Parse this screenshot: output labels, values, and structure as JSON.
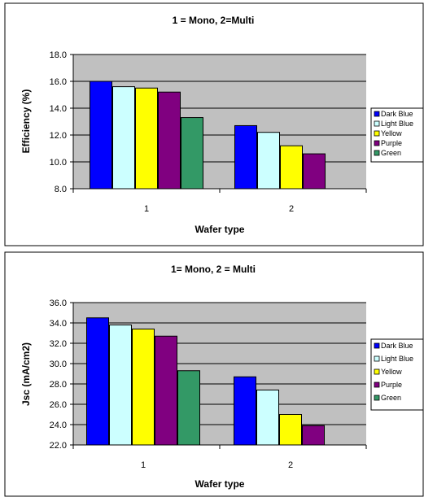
{
  "chart_data": [
    {
      "type": "bar",
      "title": "1 = Mono, 2=Multi",
      "xlabel": "Wafer type",
      "ylabel": "Efficiency (%)",
      "ylim": [
        8.0,
        18.0
      ],
      "ytick_step": 2.0,
      "yticks": [
        "8.0",
        "10.0",
        "12.0",
        "14.0",
        "16.0",
        "18.0"
      ],
      "categories": [
        "1",
        "2"
      ],
      "grid": true,
      "legend_position": "right",
      "series": [
        {
          "name": "Dark Blue",
          "color": "#0000ff",
          "values": [
            16.0,
            12.7
          ]
        },
        {
          "name": "Light Blue",
          "color": "#ccffff",
          "values": [
            15.6,
            12.2
          ]
        },
        {
          "name": "Yellow",
          "color": "#ffff00",
          "values": [
            15.5,
            11.2
          ]
        },
        {
          "name": "Purple",
          "color": "#800080",
          "values": [
            15.2,
            10.6
          ]
        },
        {
          "name": "Green",
          "color": "#339966",
          "values": [
            13.3,
            null
          ]
        }
      ],
      "plot_bg": "#c0c0c0"
    },
    {
      "type": "bar",
      "title": "1= Mono, 2 = Multi",
      "xlabel": "Wafer type",
      "ylabel": "Jsc (mA/cm2)",
      "ylim": [
        22.0,
        36.0
      ],
      "ytick_step": 2.0,
      "yticks": [
        "22.0",
        "24.0",
        "26.0",
        "28.0",
        "30.0",
        "32.0",
        "34.0",
        "36.0"
      ],
      "categories": [
        "1",
        "2"
      ],
      "grid": true,
      "legend_position": "right",
      "series": [
        {
          "name": "Dark Blue",
          "color": "#0000ff",
          "values": [
            34.5,
            28.7
          ]
        },
        {
          "name": "Light Blue",
          "color": "#ccffff",
          "values": [
            33.8,
            27.4
          ]
        },
        {
          "name": "Yellow",
          "color": "#ffff00",
          "values": [
            33.4,
            25.0
          ]
        },
        {
          "name": "Purple",
          "color": "#800080",
          "values": [
            32.7,
            23.9
          ]
        },
        {
          "name": "Green",
          "color": "#339966",
          "values": [
            29.3,
            null
          ]
        }
      ],
      "plot_bg": "#c0c0c0"
    }
  ]
}
